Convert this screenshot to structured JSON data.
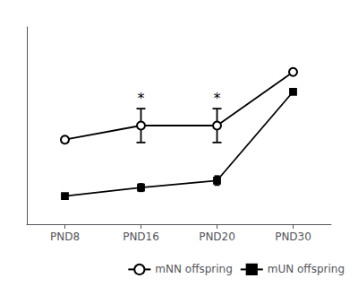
{
  "chart_data": {
    "type": "line",
    "categories": [
      "PND8",
      "PND16",
      "PND20",
      "PND30"
    ],
    "series": [
      {
        "name": "mNN offspring",
        "color": "#000000",
        "marker": "open circle",
        "values": [
          4.8,
          5.3,
          5.3,
          7.2
        ],
        "errors": [
          0.0,
          0.6,
          0.6,
          0.0
        ]
      },
      {
        "name": "mUN offspring",
        "color": "#000000",
        "marker": "square",
        "values": [
          2.8,
          3.1,
          3.35,
          6.5
        ],
        "errors": [
          0.0,
          0.13,
          0.16,
          0.0
        ]
      }
    ],
    "annotations": [
      {
        "text": "*",
        "x": "PND16",
        "series": "mNN offspring"
      },
      {
        "text": "*",
        "x": "PND20",
        "series": "mNN offspring"
      }
    ],
    "ylim": [
      1.8,
      8.8
    ],
    "tick_labels": "x",
    "grid": false,
    "legend": "lower right"
  }
}
